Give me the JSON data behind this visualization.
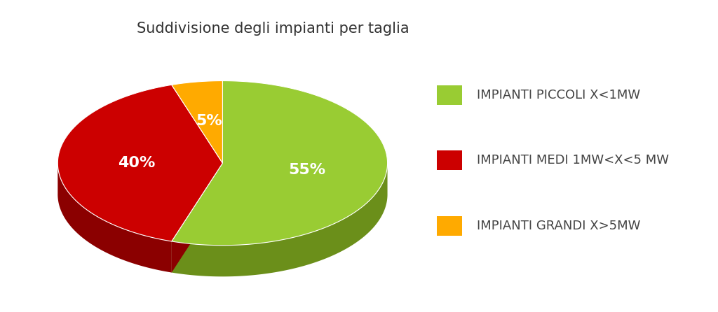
{
  "title": "Suddivisione degli impianti per taglia",
  "slices": [
    55,
    40,
    5
  ],
  "colors": [
    "#99cc33",
    "#cc0000",
    "#ffaa00"
  ],
  "dark_colors": [
    "#6b8f1a",
    "#8b0000",
    "#cc7700"
  ],
  "labels": [
    "55%",
    "40%",
    "5%"
  ],
  "legend_labels": [
    "IMPIANTI PICCOLI X<1MW",
    "IMPIANTI MEDI 1MW<X<5 MW",
    "IMPIANTI GRANDI X>5MW"
  ],
  "background_color": "#ffffff",
  "title_fontsize": 15,
  "label_fontsize": 16,
  "legend_fontsize": 13,
  "startangle": 90
}
